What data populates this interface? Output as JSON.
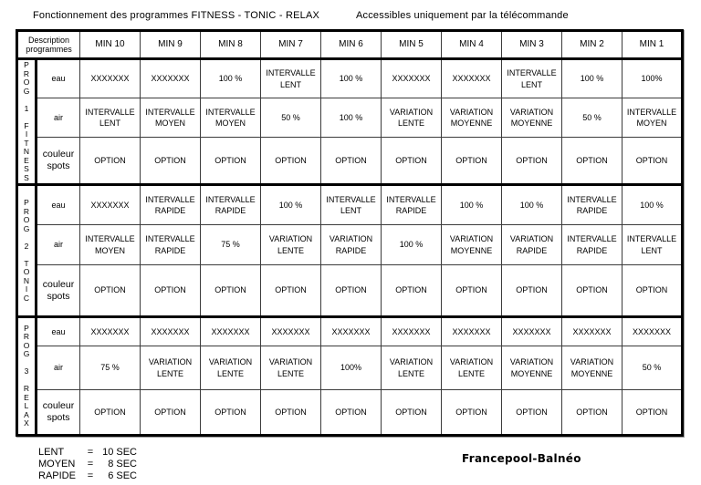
{
  "titles": {
    "left": "Fonctionnement des programmes FITNESS - TONIC - RELAX",
    "right": "Accessibles uniquement par la télécommande"
  },
  "colors": {
    "border": "#000000",
    "background": "#ffffff",
    "text": "#000000"
  },
  "table": {
    "corner_header": "Description programmes",
    "columns": [
      "MIN 10",
      "MIN 9",
      "MIN 8",
      "MIN 7",
      "MIN 6",
      "MIN 5",
      "MIN 4",
      "MIN 3",
      "MIN 2",
      "MIN 1"
    ],
    "programs": [
      {
        "label": "PROG 1 FITNESS",
        "rows": [
          {
            "name": "eau",
            "values": [
              "XXXXXXX",
              "XXXXXXX",
              "100 %",
              "INTERVALLE LENT",
              "100 %",
              "XXXXXXX",
              "XXXXXXX",
              "INTERVALLE LENT",
              "100 %",
              "100%"
            ]
          },
          {
            "name": "air",
            "values": [
              "INTERVALLE LENT",
              "INTERVALLE MOYEN",
              "INTERVALLE MOYEN",
              "50 %",
              "100 %",
              "VARIATION LENTE",
              "VARIATION MOYENNE",
              "VARIATION MOYENNE",
              "50 %",
              "INTERVALLE MOYEN"
            ]
          },
          {
            "name": "couleur spots",
            "values": [
              "OPTION",
              "OPTION",
              "OPTION",
              "OPTION",
              "OPTION",
              "OPTION",
              "OPTION",
              "OPTION",
              "OPTION",
              "OPTION"
            ]
          }
        ]
      },
      {
        "label": "PROG 2 TONIC",
        "rows": [
          {
            "name": "eau",
            "values": [
              "XXXXXXX",
              "INTERVALLE RAPIDE",
              "INTERVALLE RAPIDE",
              "100 %",
              "INTERVALLE LENT",
              "INTERVALLE RAPIDE",
              "100 %",
              "100 %",
              "INTERVALLE RAPIDE",
              "100 %"
            ]
          },
          {
            "name": "air",
            "values": [
              "INTERVALLE MOYEN",
              "INTERVALLE RAPIDE",
              "75 %",
              "VARIATION LENTE",
              "VARIATION RAPIDE",
              "100 %",
              "VARIATION MOYENNE",
              "VARIATION RAPIDE",
              "INTERVALLE RAPIDE",
              "INTERVALLE LENT"
            ]
          },
          {
            "name": "couleur spots",
            "values": [
              "OPTION",
              "OPTION",
              "OPTION",
              "OPTION",
              "OPTION",
              "OPTION",
              "OPTION",
              "OPTION",
              "OPTION",
              "OPTION"
            ]
          }
        ]
      },
      {
        "label": "PROG 3 RELAX",
        "rows": [
          {
            "name": "eau",
            "values": [
              "XXXXXXX",
              "XXXXXXX",
              "XXXXXXX",
              "XXXXXXX",
              "XXXXXXX",
              "XXXXXXX",
              "XXXXXXX",
              "XXXXXXX",
              "XXXXXXX",
              "XXXXXXX"
            ]
          },
          {
            "name": "air",
            "values": [
              "75 %",
              "VARIATION LENTE",
              "VARIATION LENTE",
              "VARIATION LENTE",
              "100%",
              "VARIATION LENTE",
              "VARIATION LENTE",
              "VARIATION MOYENNE",
              "VARIATION MOYENNE",
              "50 %"
            ]
          },
          {
            "name": "couleur spots",
            "values": [
              "OPTION",
              "OPTION",
              "OPTION",
              "OPTION",
              "OPTION",
              "OPTION",
              "OPTION",
              "OPTION",
              "OPTION",
              "OPTION"
            ]
          }
        ]
      }
    ]
  },
  "legend": [
    {
      "term": "LENT",
      "eq": "=",
      "value": "10 SEC"
    },
    {
      "term": "MOYEN",
      "eq": "=",
      "value": "8 SEC"
    },
    {
      "term": "RAPIDE",
      "eq": "=",
      "value": "6 SEC"
    }
  ],
  "footer_brand": "Francepool-Balnéo"
}
